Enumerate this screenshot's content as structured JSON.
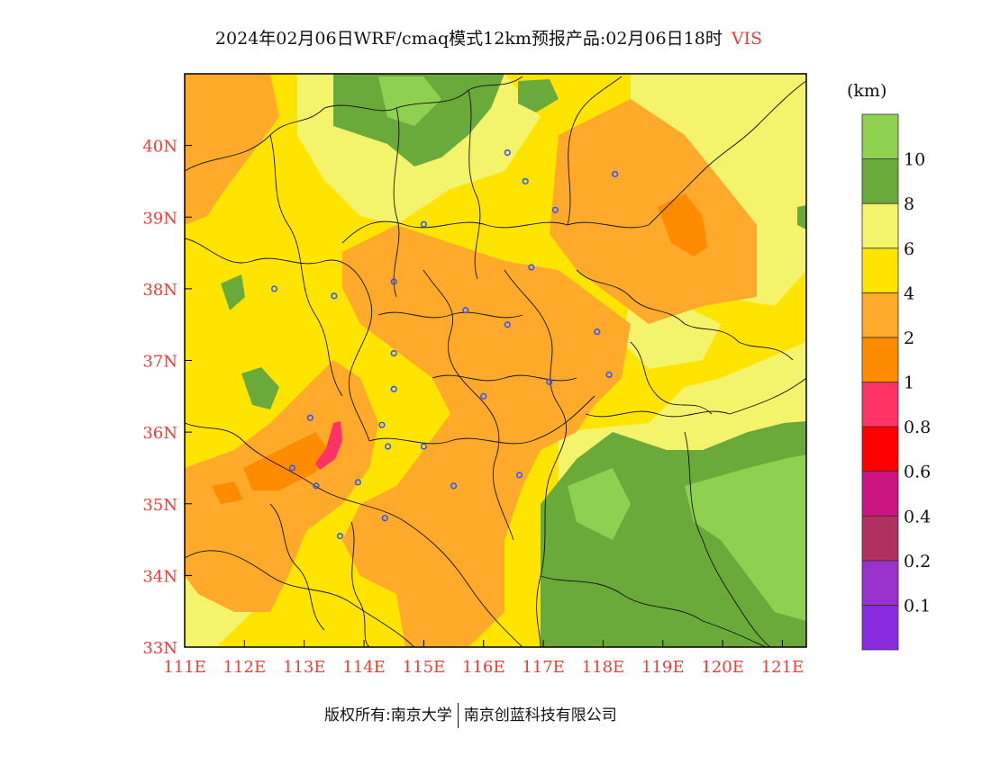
{
  "title": {
    "main": "2024年02月06日WRF/cmaq模式12km预报产品:02月06日18时",
    "variable": "VIS"
  },
  "colorbar": {
    "unit": "(km)",
    "colors": [
      "#8a2be2",
      "#9932cc",
      "#b03060",
      "#cc1480",
      "#ff0000",
      "#ff3366",
      "#ff8c00",
      "#ffaa2a",
      "#ffe400",
      "#f3f36c",
      "#6aaa3a",
      "#8fd050"
    ],
    "labels": [
      "0.1",
      "0.2",
      "0.4",
      "0.6",
      "0.8",
      "1",
      "2",
      "4",
      "6",
      "8",
      "10"
    ]
  },
  "axes": {
    "lon_labels": [
      "111E",
      "112E",
      "113E",
      "114E",
      "115E",
      "116E",
      "117E",
      "118E",
      "119E",
      "120E",
      "121E"
    ],
    "lat_labels": [
      "33N",
      "34N",
      "35N",
      "36N",
      "37N",
      "38N",
      "39N",
      "40N"
    ]
  },
  "cities": [
    [
      116.4,
      39.9
    ],
    [
      116.7,
      39.5
    ],
    [
      117.2,
      39.1
    ],
    [
      118.2,
      39.6
    ],
    [
      115.0,
      38.9
    ],
    [
      116.8,
      38.3
    ],
    [
      112.5,
      38.0
    ],
    [
      113.5,
      37.9
    ],
    [
      114.5,
      38.1
    ],
    [
      115.7,
      37.7
    ],
    [
      116.4,
      37.5
    ],
    [
      117.9,
      37.4
    ],
    [
      114.5,
      37.1
    ],
    [
      114.5,
      36.6
    ],
    [
      116.0,
      36.5
    ],
    [
      117.1,
      36.7
    ],
    [
      118.1,
      36.8
    ],
    [
      113.1,
      36.2
    ],
    [
      114.3,
      36.1
    ],
    [
      115.0,
      35.8
    ],
    [
      114.4,
      35.8
    ],
    [
      112.8,
      35.5
    ],
    [
      113.2,
      35.25
    ],
    [
      113.9,
      35.3
    ],
    [
      115.5,
      35.25
    ],
    [
      116.6,
      35.4
    ],
    [
      114.35,
      34.8
    ],
    [
      113.6,
      34.55
    ]
  ],
  "footer": {
    "left": "版权所有:南京大学",
    "right": "南京创蓝科技有限公司"
  }
}
